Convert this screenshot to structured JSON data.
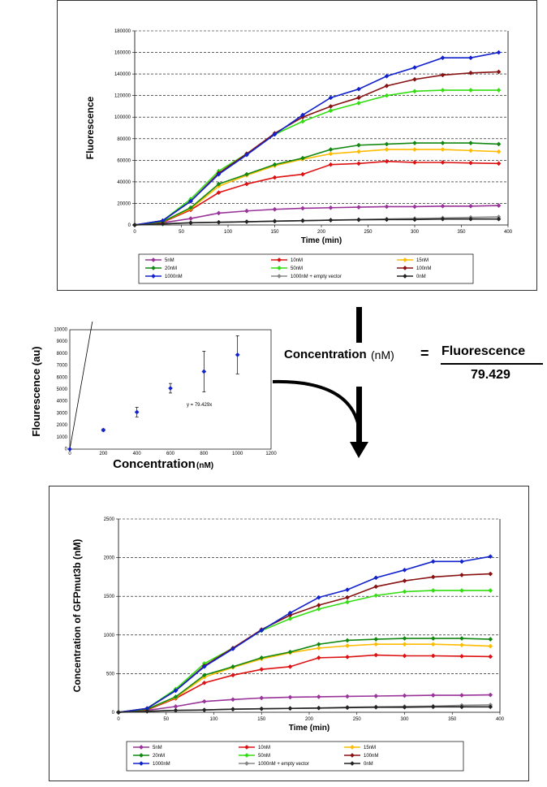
{
  "chart_data": [
    {
      "type": "line",
      "id": "top",
      "ylabel": "Fluorescence",
      "xlabel": "Time (min)",
      "xlim": [
        0,
        400
      ],
      "ylim": [
        0,
        180000
      ],
      "xticks": [
        "0",
        "50",
        "100",
        "150",
        "200",
        "250",
        "300",
        "350",
        "400"
      ],
      "yticks": [
        "0",
        "20000",
        "40000",
        "60000",
        "80000",
        "100000",
        "120000",
        "140000",
        "160000",
        "180000"
      ],
      "x": [
        0,
        30,
        60,
        90,
        120,
        150,
        180,
        210,
        240,
        270,
        300,
        330,
        360,
        390
      ],
      "series": [
        {
          "name": "5nM",
          "color": "#993399",
          "values": [
            0,
            2000,
            6000,
            11000,
            13000,
            14500,
            15500,
            16000,
            16500,
            17000,
            17000,
            17500,
            17500,
            18000
          ]
        },
        {
          "name": "10nM",
          "color": "#dd1111",
          "values": [
            0,
            2500,
            14000,
            30000,
            38000,
            44000,
            47000,
            56000,
            57000,
            59000,
            58000,
            58000,
            57500,
            57000
          ]
        },
        {
          "name": "15nM",
          "color": "#ffbb00",
          "values": [
            0,
            3000,
            15000,
            36000,
            46000,
            55000,
            61000,
            66000,
            68000,
            70000,
            70000,
            70000,
            69000,
            68000
          ]
        },
        {
          "name": "20nM",
          "color": "#118811",
          "values": [
            0,
            3000,
            16000,
            38000,
            47000,
            56000,
            62000,
            70000,
            74000,
            75000,
            76000,
            76000,
            76000,
            75000
          ]
        },
        {
          "name": "50nM",
          "color": "#33dd11",
          "values": [
            0,
            4000,
            24000,
            50000,
            66000,
            84000,
            96000,
            106000,
            113000,
            120000,
            124000,
            125000,
            125000,
            125000
          ]
        },
        {
          "name": "100nM",
          "color": "#881111",
          "values": [
            0,
            4000,
            22000,
            48000,
            66000,
            85000,
            100000,
            110000,
            118000,
            129000,
            135000,
            139000,
            141000,
            142000
          ]
        },
        {
          "name": "1000nM",
          "color": "#1122cc",
          "values": [
            0,
            4000,
            22000,
            47000,
            65000,
            84000,
            102000,
            118000,
            126000,
            138000,
            146000,
            155000,
            155000,
            160000
          ]
        },
        {
          "name": "1000nM + empty vector",
          "color": "#888888",
          "values": [
            0,
            1000,
            2000,
            2500,
            3000,
            3500,
            4000,
            4500,
            5000,
            5500,
            6000,
            6500,
            7000,
            7500
          ]
        },
        {
          "name": "0nM",
          "color": "#222222",
          "values": [
            0,
            1000,
            2000,
            2500,
            3000,
            3500,
            4000,
            4500,
            4800,
            5000,
            5000,
            5500,
            5500,
            5500
          ]
        }
      ]
    },
    {
      "type": "scatter",
      "id": "calibration",
      "ylabel": "Flourescence (au)",
      "xlabel": "Concentration",
      "xlabel_unit": "(nM)",
      "xlim": [
        0,
        1200
      ],
      "ylim": [
        0,
        10000
      ],
      "xticks": [
        "0",
        "200",
        "400",
        "600",
        "800",
        "1000",
        "1200"
      ],
      "yticks": [
        "0",
        "1000",
        "2000",
        "3000",
        "4000",
        "5000",
        "6000",
        "7000",
        "8000",
        "9000",
        "10000"
      ],
      "points": [
        {
          "x": 0,
          "y": 0,
          "err": 0
        },
        {
          "x": 200,
          "y": 1600,
          "err": 100
        },
        {
          "x": 400,
          "y": 3100,
          "err": 400
        },
        {
          "x": 600,
          "y": 5100,
          "err": 400
        },
        {
          "x": 800,
          "y": 6500,
          "err": 1700
        },
        {
          "x": 1000,
          "y": 7900,
          "err": 1600
        }
      ],
      "fit_slope": 79.429,
      "annotation": "y = 79.429x"
    },
    {
      "type": "line",
      "id": "bottom",
      "ylabel": "Concentration of GFPmut3b (nM)",
      "xlabel": "Time (min)",
      "xlim": [
        0,
        400
      ],
      "ylim": [
        0,
        2500
      ],
      "xticks": [
        "0",
        "50",
        "100",
        "150",
        "200",
        "250",
        "300",
        "350",
        "400"
      ],
      "yticks": [
        "0",
        "500",
        "1000",
        "1500",
        "2000",
        "2500"
      ],
      "x": [
        0,
        30,
        60,
        90,
        120,
        150,
        180,
        210,
        240,
        270,
        300,
        330,
        360,
        390
      ],
      "series": [
        {
          "name": "5nM",
          "color": "#993399",
          "values": [
            0,
            25,
            75,
            140,
            165,
            185,
            195,
            200,
            205,
            210,
            215,
            220,
            220,
            225
          ]
        },
        {
          "name": "10nM",
          "color": "#dd1111",
          "values": [
            0,
            30,
            180,
            380,
            480,
            555,
            590,
            705,
            715,
            740,
            730,
            730,
            725,
            720
          ]
        },
        {
          "name": "15nM",
          "color": "#ffbb00",
          "values": [
            0,
            40,
            190,
            455,
            580,
            690,
            770,
            830,
            860,
            880,
            880,
            880,
            870,
            855
          ]
        },
        {
          "name": "20nM",
          "color": "#118811",
          "values": [
            0,
            40,
            200,
            480,
            590,
            705,
            780,
            880,
            930,
            945,
            955,
            955,
            955,
            945
          ]
        },
        {
          "name": "50nM",
          "color": "#33dd11",
          "values": [
            0,
            50,
            300,
            630,
            830,
            1055,
            1210,
            1335,
            1425,
            1510,
            1560,
            1575,
            1575,
            1575
          ]
        },
        {
          "name": "100nM",
          "color": "#881111",
          "values": [
            0,
            50,
            280,
            600,
            830,
            1070,
            1255,
            1385,
            1485,
            1625,
            1700,
            1750,
            1775,
            1790
          ]
        },
        {
          "name": "1000nM",
          "color": "#1122cc",
          "values": [
            0,
            50,
            280,
            590,
            820,
            1060,
            1285,
            1485,
            1585,
            1740,
            1840,
            1950,
            1950,
            2015
          ]
        },
        {
          "name": "1000nM + empty vector",
          "color": "#888888",
          "values": [
            0,
            12,
            25,
            30,
            40,
            45,
            50,
            55,
            65,
            70,
            75,
            80,
            90,
            95
          ]
        },
        {
          "name": "0nM",
          "color": "#222222",
          "values": [
            0,
            12,
            25,
            30,
            40,
            45,
            50,
            55,
            60,
            65,
            65,
            70,
            70,
            70
          ]
        }
      ]
    }
  ],
  "legend_labels": [
    "5nM",
    "10nM",
    "15nM",
    "20nM",
    "50nM",
    "100nM",
    "1000nM",
    "1000nM + empty vector",
    "0nM"
  ],
  "formula": {
    "lhs": "Concentration",
    "unit": "(nM)",
    "equals": "=",
    "numerator": "Fluorescence",
    "denominator": "79.429"
  }
}
